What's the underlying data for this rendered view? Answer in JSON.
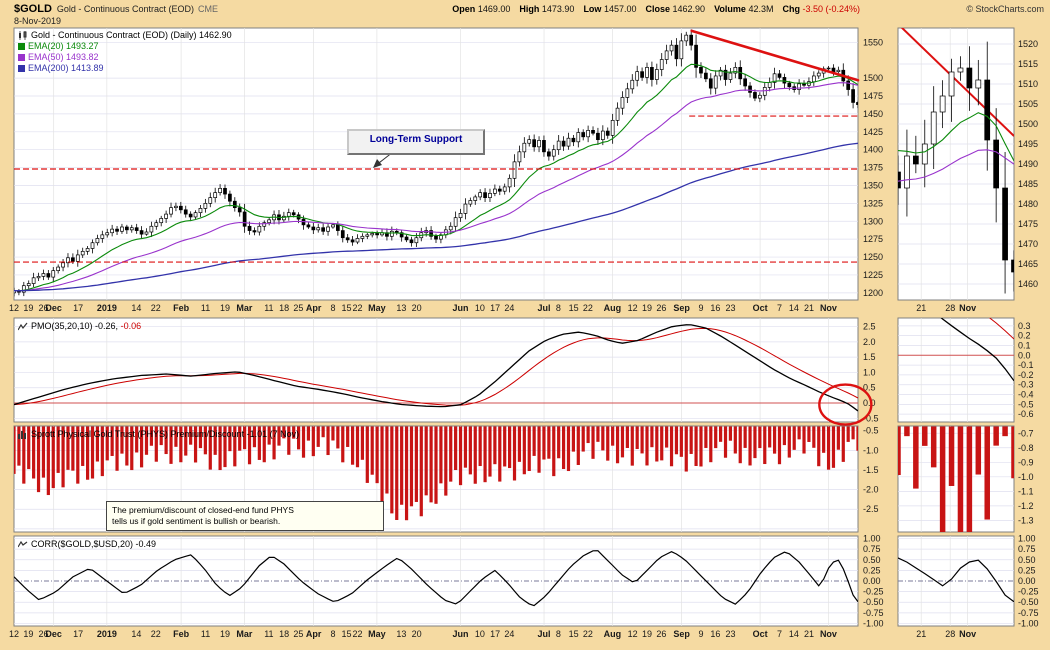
{
  "header": {
    "symbol": "$GOLD",
    "name": "Gold - Continuous Contract (EOD)",
    "exchange": "CME",
    "date": "8-Nov-2019",
    "copyright": "© StockCharts.com",
    "quote": [
      {
        "label": "Open",
        "value": "1469.00"
      },
      {
        "label": "High",
        "value": "1473.90"
      },
      {
        "label": "Low",
        "value": "1457.00"
      },
      {
        "label": "Close",
        "value": "1462.90"
      },
      {
        "label": "Volume",
        "value": "42.3M"
      },
      {
        "label": "Chg",
        "value": "-3.50 (-0.24%)",
        "negative": true
      }
    ]
  },
  "panels": {
    "price": {
      "title": "Gold - Continuous Contract (EOD) (Daily) 1462.90",
      "legend": [
        {
          "label": "EMA(20) 1493.27",
          "color": "#0B8A0B"
        },
        {
          "label": "EMA(50) 1493.82",
          "color": "#9933CC"
        },
        {
          "label": "EMA(200) 1413.89",
          "color": "#3333AA"
        }
      ],
      "yticks": [
        "1550",
        "1500",
        "1475",
        "1450",
        "1425",
        "1400",
        "1375",
        "1350",
        "1325",
        "1300",
        "1275",
        "1250",
        "1225",
        "1200"
      ]
    },
    "pmo": {
      "label": "PMO(35,20,10)",
      "value": "-0.26,",
      "signal": "-0.06",
      "yticks": [
        "2.5",
        "2.0",
        "1.5",
        "1.0",
        "0.5",
        "0.0",
        "-0.5"
      ]
    },
    "phys": {
      "label": "Sprott Physical Gold Trust (PHYS) Premium/Discount",
      "value": "-1.01 (7 Nov)",
      "yticks": [
        "-0.5",
        "-1.0",
        "-1.5",
        "-2.0",
        "-2.5"
      ]
    },
    "corr": {
      "label": "CORR($GOLD,$USD,20)",
      "value": "-0.49",
      "yticks": [
        "1.00",
        "0.75",
        "0.50",
        "0.25",
        "0.00",
        "-0.25",
        "-0.50",
        "-0.75",
        "-1.00"
      ]
    }
  },
  "xticks": [
    {
      "t": "12",
      "f": 0.0
    },
    {
      "t": "19",
      "f": 0.017
    },
    {
      "t": "26",
      "f": 0.035
    },
    {
      "t": "Dec",
      "f": 0.047,
      "b": 1
    },
    {
      "t": "17",
      "f": 0.076
    },
    {
      "t": "2019",
      "f": 0.11,
      "b": 1
    },
    {
      "t": "14",
      "f": 0.145
    },
    {
      "t": "22",
      "f": 0.168
    },
    {
      "t": "Feb",
      "f": 0.198,
      "b": 1
    },
    {
      "t": "11",
      "f": 0.227
    },
    {
      "t": "19",
      "f": 0.25
    },
    {
      "t": "Mar",
      "f": 0.273,
      "b": 1
    },
    {
      "t": "11",
      "f": 0.302
    },
    {
      "t": "18",
      "f": 0.32
    },
    {
      "t": "25",
      "f": 0.337
    },
    {
      "t": "Apr",
      "f": 0.355,
      "b": 1
    },
    {
      "t": "8",
      "f": 0.378
    },
    {
      "t": "15",
      "f": 0.394
    },
    {
      "t": "22",
      "f": 0.407
    },
    {
      "t": "May",
      "f": 0.43,
      "b": 1
    },
    {
      "t": "13",
      "f": 0.459
    },
    {
      "t": "20",
      "f": 0.477
    },
    {
      "t": "Jun",
      "f": 0.529,
      "b": 1
    },
    {
      "t": "10",
      "f": 0.552
    },
    {
      "t": "17",
      "f": 0.57
    },
    {
      "t": "24",
      "f": 0.587
    },
    {
      "t": "Jul",
      "f": 0.628,
      "b": 1
    },
    {
      "t": "8",
      "f": 0.645
    },
    {
      "t": "15",
      "f": 0.663
    },
    {
      "t": "22",
      "f": 0.68
    },
    {
      "t": "Aug",
      "f": 0.709,
      "b": 1
    },
    {
      "t": "12",
      "f": 0.733
    },
    {
      "t": "19",
      "f": 0.75
    },
    {
      "t": "26",
      "f": 0.767
    },
    {
      "t": "Sep",
      "f": 0.791,
      "b": 1
    },
    {
      "t": "9",
      "f": 0.814
    },
    {
      "t": "16",
      "f": 0.831
    },
    {
      "t": "23",
      "f": 0.849
    },
    {
      "t": "Oct",
      "f": 0.884,
      "b": 1
    },
    {
      "t": "7",
      "f": 0.907
    },
    {
      "t": "14",
      "f": 0.924
    },
    {
      "t": "21",
      "f": 0.942
    },
    {
      "t": "Nov",
      "f": 0.965,
      "b": 1
    }
  ],
  "minis": {
    "price_yticks": [
      "1520",
      "1515",
      "1510",
      "1505",
      "1500",
      "1495",
      "1490",
      "1485",
      "1480",
      "1475",
      "1470",
      "1465",
      "1460"
    ],
    "pmo_yticks": [
      "0.3",
      "0.2",
      "0.1",
      "0.0",
      "-0.1",
      "-0.2",
      "-0.3",
      "-0.4",
      "-0.5",
      "-0.6"
    ],
    "phys_yticks": [
      "-0.7",
      "-0.8",
      "-0.9",
      "-1.0",
      "-1.1",
      "-1.2",
      "-1.3"
    ],
    "corr_yticks": [
      "1.00",
      "0.75",
      "0.50",
      "0.25",
      "0.00",
      "-0.25",
      "-0.50",
      "-0.75",
      "-1.00"
    ],
    "xticks": [
      {
        "t": "21",
        "f": 0.2
      },
      {
        "t": "28",
        "f": 0.45
      },
      {
        "t": "Nov",
        "f": 0.6,
        "b": 1
      }
    ]
  },
  "annotations": {
    "support_label": "Long-Term Support",
    "note_line1": "The premium/discount of closed-end fund PHYS",
    "note_line2": "tells us if gold sentiment is bullish or bearish.",
    "support_levels": [
      1447,
      1373,
      1243
    ],
    "trendline": {
      "from_f": 0.803,
      "from_v": 1566,
      "to_f": 1.0,
      "to_v": 1497
    }
  },
  "colors": {
    "background_tan": "#F5DAA2",
    "annotation_red": "#DD1111",
    "signal_red": "#CC0000",
    "bar_red": "#C81414",
    "support_navy": "#000099"
  },
  "chart_data": [
    {
      "type": "candlestick",
      "title": "Gold - Continuous Contract (EOD) (Daily)",
      "last": 1462.9,
      "ylim": [
        1190,
        1570
      ],
      "overlays": [
        "EMA(20)=1493.27",
        "EMA(50)=1493.82",
        "EMA(200)=1413.89"
      ],
      "x_range": [
        "12-Nov-2018",
        "8-Nov-2019"
      ],
      "closes": [
        1203,
        1201,
        1210,
        1213,
        1221,
        1223,
        1227,
        1222,
        1231,
        1236,
        1242,
        1249,
        1244,
        1253,
        1258,
        1262,
        1270,
        1276,
        1281,
        1284,
        1289,
        1286,
        1292,
        1288,
        1291,
        1287,
        1282,
        1285,
        1293,
        1298,
        1304,
        1310,
        1319,
        1321,
        1316,
        1310,
        1306,
        1312,
        1318,
        1325,
        1333,
        1340,
        1346,
        1338,
        1328,
        1319,
        1313,
        1293,
        1287,
        1285,
        1293,
        1298,
        1302,
        1309,
        1302,
        1307,
        1312,
        1309,
        1303,
        1295,
        1292,
        1288,
        1291,
        1286,
        1292,
        1295,
        1287,
        1277,
        1274,
        1271,
        1276,
        1279,
        1281,
        1283,
        1281,
        1284,
        1279,
        1286,
        1284,
        1278,
        1274,
        1270,
        1277,
        1284,
        1287,
        1279,
        1275,
        1281,
        1288,
        1293,
        1305,
        1311,
        1324,
        1329,
        1334,
        1340,
        1333,
        1339,
        1345,
        1342,
        1348,
        1360,
        1383,
        1397,
        1409,
        1414,
        1404,
        1413,
        1397,
        1391,
        1400,
        1412,
        1405,
        1416,
        1411,
        1424,
        1418,
        1427,
        1423,
        1414,
        1426,
        1420,
        1441,
        1458,
        1473,
        1485,
        1497,
        1509,
        1501,
        1515,
        1498,
        1512,
        1526,
        1538,
        1546,
        1527,
        1552,
        1560,
        1546,
        1515,
        1507,
        1499,
        1486,
        1503,
        1511,
        1498,
        1507,
        1515,
        1499,
        1489,
        1480,
        1472,
        1476,
        1487,
        1494,
        1506,
        1501,
        1493,
        1488,
        1484,
        1492,
        1490,
        1495,
        1503,
        1507,
        1513,
        1514,
        1509,
        1511,
        1496,
        1484,
        1466,
        1463
      ]
    },
    {
      "type": "line",
      "title": "PMO(35,20,10)",
      "last": -0.26,
      "signal_last": -0.06,
      "ylim": [
        -0.6,
        2.7
      ],
      "points": [
        [
          0,
          -0.05
        ],
        [
          0.03,
          0.2
        ],
        [
          0.06,
          0.45
        ],
        [
          0.09,
          0.65
        ],
        [
          0.12,
          0.8
        ],
        [
          0.15,
          0.9
        ],
        [
          0.18,
          0.95
        ],
        [
          0.21,
          0.88
        ],
        [
          0.24,
          0.97
        ],
        [
          0.265,
          1.02
        ],
        [
          0.285,
          0.9
        ],
        [
          0.31,
          0.72
        ],
        [
          0.335,
          0.55
        ],
        [
          0.36,
          0.45
        ],
        [
          0.385,
          0.33
        ],
        [
          0.41,
          0.18
        ],
        [
          0.435,
          0.05
        ],
        [
          0.46,
          -0.05
        ],
        [
          0.485,
          -0.1
        ],
        [
          0.51,
          -0.12
        ],
        [
          0.53,
          -0.05
        ],
        [
          0.55,
          0.25
        ],
        [
          0.57,
          0.7
        ],
        [
          0.59,
          1.2
        ],
        [
          0.61,
          1.7
        ],
        [
          0.63,
          2.05
        ],
        [
          0.65,
          2.25
        ],
        [
          0.67,
          2.32
        ],
        [
          0.69,
          2.2
        ],
        [
          0.705,
          2.05
        ],
        [
          0.72,
          1.95
        ],
        [
          0.74,
          2.05
        ],
        [
          0.76,
          2.3
        ],
        [
          0.78,
          2.5
        ],
        [
          0.8,
          2.57
        ],
        [
          0.82,
          2.45
        ],
        [
          0.84,
          2.15
        ],
        [
          0.86,
          1.8
        ],
        [
          0.88,
          1.45
        ],
        [
          0.9,
          1.1
        ],
        [
          0.92,
          0.8
        ],
        [
          0.94,
          0.55
        ],
        [
          0.955,
          0.35
        ],
        [
          0.97,
          0.18
        ],
        [
          0.98,
          0.08
        ],
        [
          0.99,
          -0.05
        ],
        [
          1,
          -0.26
        ]
      ]
    },
    {
      "type": "bar",
      "title": "Sprott Physical Gold Trust (PHYS) Premium/Discount",
      "last": -1.01,
      "ylim": [
        -3.0,
        -0.4
      ],
      "points": [
        [
          0,
          -1.6
        ],
        [
          0.04,
          -1.9
        ],
        [
          0.08,
          -1.6
        ],
        [
          0.12,
          -1.35
        ],
        [
          0.16,
          -1.15
        ],
        [
          0.2,
          -1.05
        ],
        [
          0.24,
          -1.3
        ],
        [
          0.28,
          -1.15
        ],
        [
          0.32,
          -0.95
        ],
        [
          0.36,
          -0.9
        ],
        [
          0.4,
          -1.1
        ],
        [
          0.43,
          -2.0
        ],
        [
          0.455,
          -2.6
        ],
        [
          0.48,
          -2.55
        ],
        [
          0.5,
          -2.1
        ],
        [
          0.52,
          -1.8
        ],
        [
          0.55,
          -1.55
        ],
        [
          0.58,
          -1.65
        ],
        [
          0.61,
          -1.35
        ],
        [
          0.64,
          -1.45
        ],
        [
          0.67,
          -1.15
        ],
        [
          0.7,
          -0.95
        ],
        [
          0.73,
          -1.25
        ],
        [
          0.76,
          -1.05
        ],
        [
          0.79,
          -1.35
        ],
        [
          0.82,
          -1.15
        ],
        [
          0.85,
          -0.95
        ],
        [
          0.88,
          -1.25
        ],
        [
          0.91,
          -1.05
        ],
        [
          0.93,
          -0.85
        ],
        [
          0.95,
          -1.1
        ],
        [
          0.965,
          -1.3
        ],
        [
          0.98,
          -1.2
        ],
        [
          0.99,
          -0.9
        ],
        [
          1,
          -1.01
        ]
      ]
    },
    {
      "type": "line",
      "title": "CORR($GOLD,$USD,20)",
      "last": -0.49,
      "ylim": [
        -1.0,
        1.0
      ],
      "points": [
        [
          0,
          0.1
        ],
        [
          0.015,
          -0.2
        ],
        [
          0.03,
          -0.45
        ],
        [
          0.05,
          -0.25
        ],
        [
          0.07,
          0.1
        ],
        [
          0.09,
          0.3
        ],
        [
          0.11,
          0
        ],
        [
          0.13,
          -0.3
        ],
        [
          0.15,
          -0.1
        ],
        [
          0.17,
          0.25
        ],
        [
          0.19,
          0.5
        ],
        [
          0.21,
          0.62
        ],
        [
          0.225,
          0.3
        ],
        [
          0.24,
          -0.1
        ],
        [
          0.255,
          -0.35
        ],
        [
          0.27,
          -0.15
        ],
        [
          0.29,
          0.35
        ],
        [
          0.305,
          0.6
        ],
        [
          0.32,
          0.4
        ],
        [
          0.34,
          0
        ],
        [
          0.36,
          -0.3
        ],
        [
          0.38,
          -0.5
        ],
        [
          0.4,
          -0.3
        ],
        [
          0.42,
          0.05
        ],
        [
          0.44,
          0.35
        ],
        [
          0.455,
          0.55
        ],
        [
          0.47,
          0.3
        ],
        [
          0.49,
          -0.1
        ],
        [
          0.51,
          -0.45
        ],
        [
          0.525,
          -0.55
        ],
        [
          0.54,
          -0.25
        ],
        [
          0.555,
          0.05
        ],
        [
          0.57,
          0.25
        ],
        [
          0.585,
          -0.05
        ],
        [
          0.6,
          -0.4
        ],
        [
          0.615,
          -0.6
        ],
        [
          0.63,
          -0.35
        ],
        [
          0.645,
          0
        ],
        [
          0.66,
          0.35
        ],
        [
          0.675,
          0.6
        ],
        [
          0.69,
          0.75
        ],
        [
          0.705,
          0.45
        ],
        [
          0.72,
          0.15
        ],
        [
          0.735,
          -0.05
        ],
        [
          0.75,
          0.25
        ],
        [
          0.765,
          0.55
        ],
        [
          0.78,
          0.7
        ],
        [
          0.795,
          0.5
        ],
        [
          0.81,
          0.2
        ],
        [
          0.825,
          -0.1
        ],
        [
          0.84,
          -0.4
        ],
        [
          0.855,
          -0.55
        ],
        [
          0.87,
          -0.25
        ],
        [
          0.885,
          0.2
        ],
        [
          0.9,
          0.55
        ],
        [
          0.915,
          0.7
        ],
        [
          0.93,
          0.45
        ],
        [
          0.945,
          0.1
        ],
        [
          0.955,
          -0.15
        ],
        [
          0.965,
          0.3
        ],
        [
          0.975,
          0.55
        ],
        [
          0.985,
          0.2
        ],
        [
          0.993,
          -0.3
        ],
        [
          1,
          -0.49
        ]
      ]
    }
  ]
}
